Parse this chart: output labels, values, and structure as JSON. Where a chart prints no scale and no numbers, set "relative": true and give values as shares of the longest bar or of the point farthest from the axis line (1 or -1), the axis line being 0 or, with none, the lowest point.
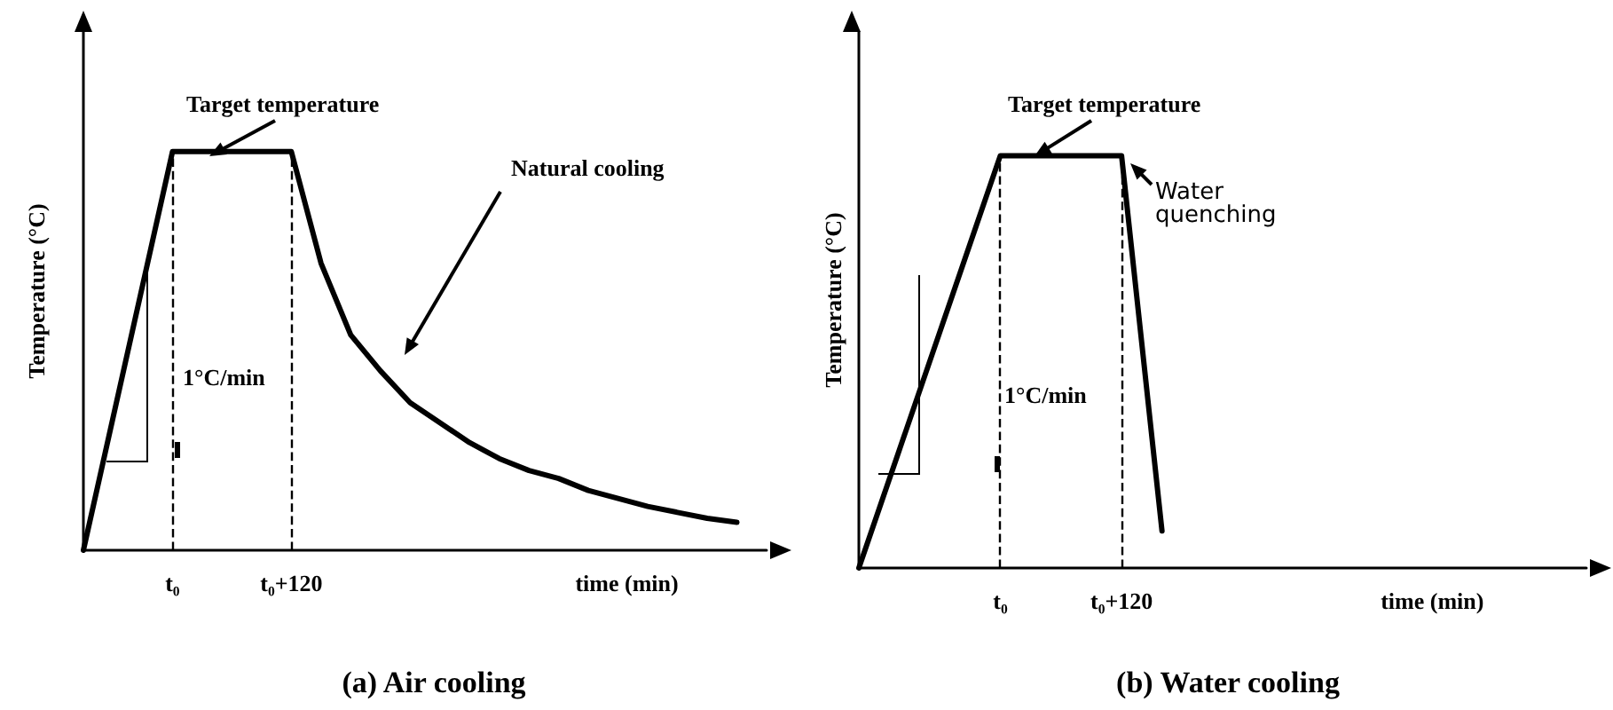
{
  "chart_data": [
    {
      "type": "line",
      "title": "(a) Air cooling",
      "xlabel": "time (min)",
      "ylabel": "Temperature (°C)",
      "relative": true,
      "color": "#000000",
      "line_style": "solid",
      "marker": "none",
      "categories": [
        null,
        null,
        null,
        "t₀",
        null,
        null,
        null,
        "t₀+120",
        null,
        null,
        null,
        null,
        null,
        null,
        null,
        null,
        null,
        null,
        null,
        null,
        null,
        null,
        null,
        null
      ],
      "values": [
        0,
        null,
        null,
        1,
        null,
        null,
        null,
        1,
        0.72,
        0.54,
        0.45,
        0.37,
        0.32,
        0.27,
        0.23,
        0.2,
        0.18,
        0.15,
        0.13,
        0.11,
        0.095,
        0.08,
        0.07,
        null
      ],
      "ref_lines": [
        {
          "axis": "x",
          "value": "t₀",
          "line_style": "dashed"
        },
        {
          "axis": "x",
          "value": "t₀+120",
          "line_style": "dashed"
        }
      ],
      "annotations": [
        "Target temperature",
        "1°C/min",
        "Natural cooling"
      ]
    },
    {
      "type": "line",
      "title": "(b) Water cooling",
      "xlabel": "time (min)",
      "ylabel": "Temperature (°C)",
      "relative": true,
      "color": "#000000",
      "line_style": "solid",
      "marker": "none",
      "categories": [
        null,
        null,
        null,
        null,
        null,
        null,
        null,
        "t₀",
        null,
        null,
        null,
        null,
        null,
        "t₀+120",
        null,
        null,
        null,
        null,
        null,
        null,
        null,
        null,
        null,
        null,
        null,
        null,
        null,
        null,
        null,
        null,
        null,
        null,
        null,
        null,
        null,
        null,
        null
      ],
      "values": [
        0,
        null,
        null,
        null,
        null,
        null,
        null,
        1,
        null,
        null,
        null,
        null,
        null,
        1,
        null,
        0.09,
        null,
        null,
        null,
        null,
        null,
        null,
        null,
        null,
        null,
        null,
        null,
        null,
        null,
        null,
        null,
        null,
        null,
        null,
        null,
        null,
        null
      ],
      "ref_lines": [
        {
          "axis": "x",
          "value": "t₀",
          "line_style": "dashed"
        },
        {
          "axis": "x",
          "value": "t₀+120",
          "line_style": "dashed"
        }
      ],
      "annotations": [
        "Target temperature",
        "1°C/min",
        "Water quenching"
      ]
    }
  ]
}
